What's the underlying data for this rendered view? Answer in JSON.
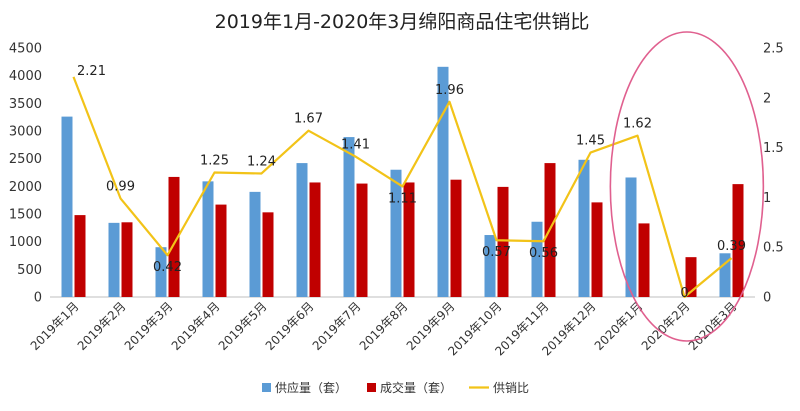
{
  "chart_data": {
    "type": "bar",
    "title": "2019年1月-2020年3月绵阳商品住宅供销比",
    "categories": [
      "2019年1月",
      "2019年2月",
      "2019年3月",
      "2019年4月",
      "2019年5月",
      "2019年6月",
      "2019年7月",
      "2019年8月",
      "2019年9月",
      "2019年10月",
      "2019年11月",
      "2019年12月",
      "2020年1月",
      "2020年2月",
      "2020年3月"
    ],
    "series": [
      {
        "name": "供应量（套）",
        "kind": "bar",
        "axis": "left",
        "color": "#5b9bd5",
        "values": [
          3260,
          1340,
          900,
          2090,
          1900,
          2420,
          2890,
          2300,
          4160,
          1120,
          1360,
          2480,
          2160,
          0,
          790
        ]
      },
      {
        "name": "成交量（套）",
        "kind": "bar",
        "axis": "left",
        "color": "#c00000",
        "values": [
          1480,
          1350,
          2170,
          1670,
          1530,
          2070,
          2050,
          2070,
          2120,
          1990,
          2420,
          1710,
          1330,
          720,
          2040
        ]
      },
      {
        "name": "供销比",
        "kind": "line",
        "axis": "right",
        "color": "#f2c318",
        "values": [
          2.21,
          0.99,
          0.42,
          1.25,
          1.24,
          1.67,
          1.41,
          1.11,
          1.96,
          0.57,
          0.56,
          1.45,
          1.62,
          0,
          0.39
        ]
      }
    ],
    "data_labels": [
      "2.21",
      "0.99",
      "0.42",
      "1.25",
      "1.24",
      "1.67",
      "1.41",
      "1.11",
      "1.96",
      "0.57",
      "0.56",
      "1.45",
      "1.62",
      "0",
      "0.39"
    ],
    "y_left": {
      "min": 0,
      "max": 4500,
      "step": 500,
      "ticks": [
        "0",
        "500",
        "1000",
        "1500",
        "2000",
        "2500",
        "3000",
        "3500",
        "4000",
        "4500"
      ]
    },
    "y_right": {
      "min": 0,
      "max": 2.5,
      "step": 0.5,
      "ticks": [
        "0",
        "0.5",
        "1",
        "1.5",
        "2",
        "2.5"
      ]
    },
    "grid": false,
    "legend_position": "bottom",
    "annotation": {
      "type": "ellipse",
      "color": "#e0608f",
      "highlights": [
        "2020年1月",
        "2020年2月",
        "2020年3月"
      ]
    }
  }
}
